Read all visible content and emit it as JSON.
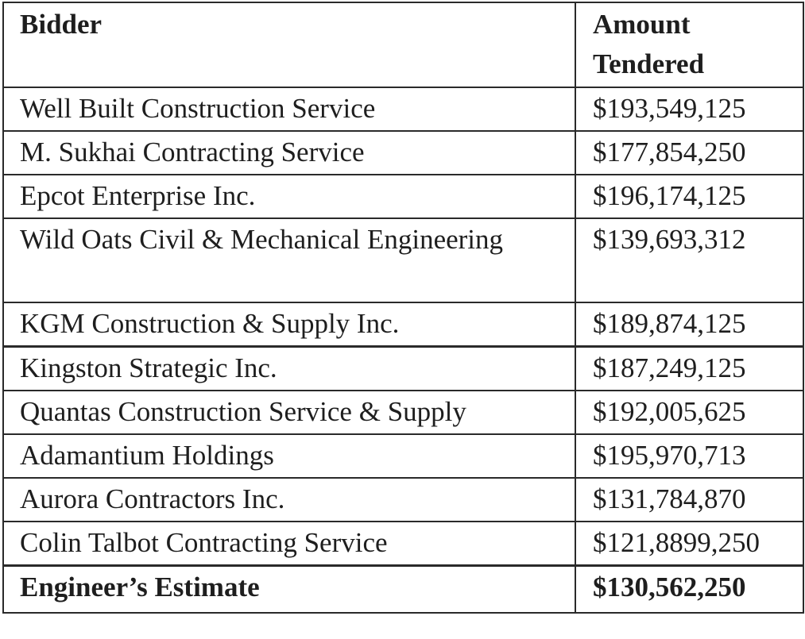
{
  "table": {
    "headers": {
      "bidder": "Bidder",
      "amount": "Amount Tendered"
    },
    "rows": [
      {
        "bidder": "Well Built Construction Service",
        "amount": "$193,549,125"
      },
      {
        "bidder": "M. Sukhai Contracting Service",
        "amount": "$177,854,250"
      },
      {
        "bidder": "Epcot Enterprise Inc.",
        "amount": "$196,174,125"
      },
      {
        "bidder": "Wild Oats Civil & Mechanical Engineering",
        "amount": "$139,693,312"
      },
      {
        "bidder": "KGM Construction & Supply Inc.",
        "amount": "$189,874,125"
      },
      {
        "bidder": "Kingston Strategic Inc.",
        "amount": "$187,249,125"
      },
      {
        "bidder": "Quantas Construction Service & Supply",
        "amount": "$192,005,625"
      },
      {
        "bidder": "Adamantium Holdings",
        "amount": "$195,970,713"
      },
      {
        "bidder": "Aurora Contractors Inc.",
        "amount": "$131,784,870"
      },
      {
        "bidder": "Colin Talbot Contracting Service",
        "amount": "$121,8899,250"
      }
    ],
    "total": {
      "bidder": "Engineer’s Estimate",
      "amount": "$130,562,250"
    }
  }
}
